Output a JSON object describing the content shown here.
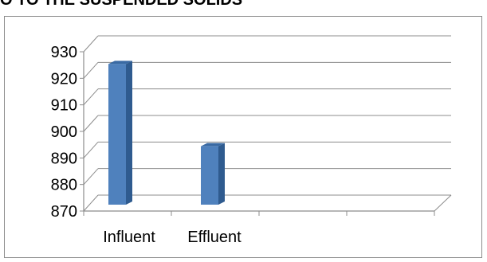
{
  "heading": {
    "text": "O TO THE SUSPENDED SOLIDS"
  },
  "chart_data": {
    "type": "bar",
    "style": "3d-column",
    "categories": [
      "Influent",
      "Effluent"
    ],
    "values": [
      923,
      892
    ],
    "ylim": [
      870,
      930
    ],
    "yticks": [
      870,
      880,
      890,
      900,
      910,
      920,
      930
    ],
    "grid": true,
    "legend": "none",
    "colors": {
      "bar_front": "#4f81bd",
      "bar_side": "#2f5b8f",
      "bar_top": "#3a6aa3",
      "grid": "#8c8c8c"
    }
  }
}
